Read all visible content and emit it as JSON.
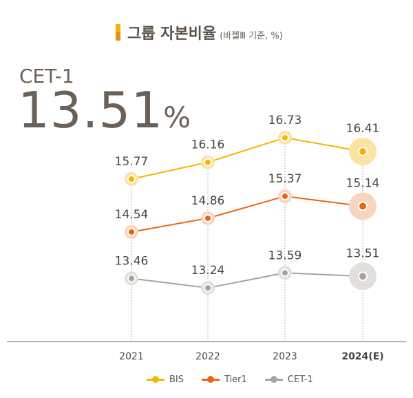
{
  "header": {
    "title": "그룹 자본비율",
    "subtitle": "(바젤Ⅲ 기준, %)"
  },
  "highlight": {
    "label": "CET-1",
    "value": "13.51",
    "unit": "%"
  },
  "chart_data": {
    "type": "line",
    "categories": [
      "2021",
      "2022",
      "2023",
      "2024(E)"
    ],
    "series": [
      {
        "name": "BIS",
        "values": [
          15.77,
          16.16,
          16.73,
          16.41
        ],
        "color": "#f7b500",
        "halo": "#fbe3a3"
      },
      {
        "name": "Tier1",
        "values": [
          14.54,
          14.86,
          15.37,
          15.14
        ],
        "color": "#e8660f",
        "halo": "#f8d5c0"
      },
      {
        "name": "CET-1",
        "values": [
          13.46,
          13.24,
          13.59,
          13.51
        ],
        "color": "#a8a39a",
        "halo": "#e2e0dc"
      }
    ],
    "ylim": [
      12,
      17.3
    ],
    "grid": false,
    "legend": "bottom-center"
  }
}
